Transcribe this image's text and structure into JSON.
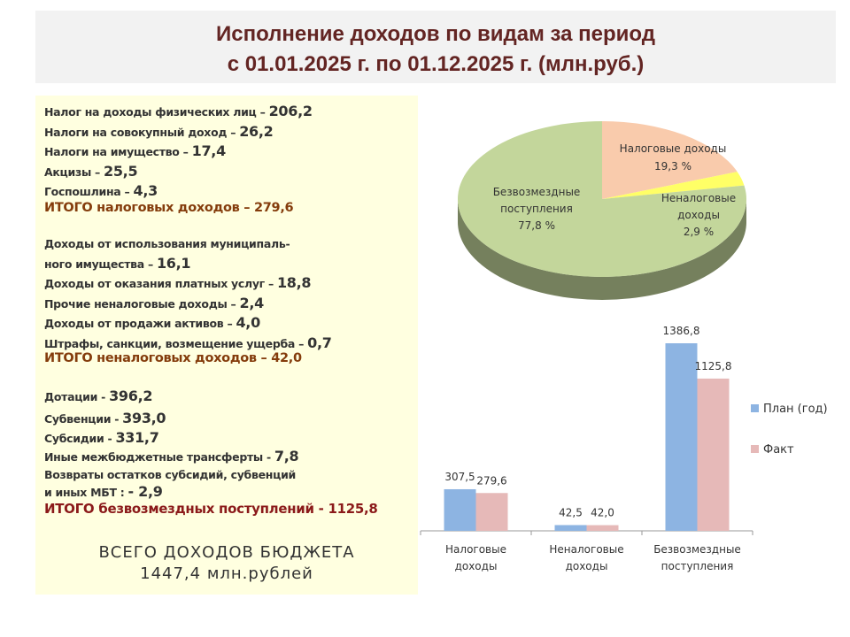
{
  "title": {
    "line1": "Исполнение доходов по видам за период",
    "line2": "с 01.01.2025 г. по 01.12.2025 г.  (млн.руб.)"
  },
  "left": {
    "tax": [
      {
        "label": "Налог на доходы физических лиц – ",
        "value": "206,2"
      },
      {
        "label": "Налоги на совокупный доход – ",
        "value": "26,2"
      },
      {
        "label": "Налоги на имущество – ",
        "value": "17,4"
      },
      {
        "label": "Акцизы – ",
        "value": "25,5"
      },
      {
        "label": "Госпошлина – ",
        "value": "4,3"
      }
    ],
    "tax_total": "ИТОГО налоговых доходов – 279,6",
    "nontax": [
      {
        "label": "Доходы от использования муниципаль-",
        "value": ""
      },
      {
        "label": "ного имущества – ",
        "value": "16,1"
      },
      {
        "label": "Доходы от оказания платных услуг  – ",
        "value": "18,8"
      },
      {
        "label": "Прочие неналоговые доходы – ",
        "value": "2,4"
      },
      {
        "label": "Доходы от продажи активов – ",
        "value": "4,0"
      },
      {
        "label": "Штрафы, санкции, возмещение ущерба – ",
        "value": "0,7"
      }
    ],
    "nontax_total": "ИТОГО неналоговых доходов – 42,0",
    "grants": [
      {
        "label": "Дотации - ",
        "value": "396,2"
      },
      {
        "label": "Субвенции - ",
        "value": "393,0"
      },
      {
        "label": "Субсидии - ",
        "value": "331,7"
      },
      {
        "label": "Иные межбюджетные трансферты - ",
        "value": "7,8"
      },
      {
        "label": "Возвраты остатков субсидий, субвенций",
        "value": ""
      },
      {
        "label": "и иных МБТ :  ",
        "value": "- 2,9"
      }
    ],
    "grants_total": "ИТОГО безвозмездных поступлений - 1125,8",
    "grand_total_label": "ВСЕГО ДОХОДОВ БЮДЖЕТА",
    "grand_total_value": "1447,4 млн.рублей"
  },
  "chart_data": [
    {
      "type": "pie",
      "slices": [
        {
          "label": "Налоговые доходы",
          "pct_label": "19,3 %",
          "value": 19.3,
          "color": "#f9cbac"
        },
        {
          "label": "Неналоговые доходы",
          "pct_label": "2,9 %",
          "value": 2.9,
          "color": "#ffff66"
        },
        {
          "label": "Безвозмездные поступления",
          "pct_label": "77,8 %",
          "value": 77.8,
          "color": "#c3d69b"
        }
      ]
    },
    {
      "type": "bar",
      "categories": [
        "Налоговые доходы",
        "Неналоговые доходы",
        "Безвозмездные поступления"
      ],
      "series": [
        {
          "name": "План (год)",
          "values": [
            307.5,
            42.5,
            1386.8
          ],
          "labels": [
            "307,5",
            "42,5",
            "1386,8"
          ],
          "color": "#8db4e2"
        },
        {
          "name": "Факт",
          "values": [
            279.6,
            42.0,
            1125.8
          ],
          "labels": [
            "279,6",
            "42,0",
            "1125,8"
          ],
          "color": "#e6b9b8"
        }
      ],
      "legend": "right"
    }
  ]
}
